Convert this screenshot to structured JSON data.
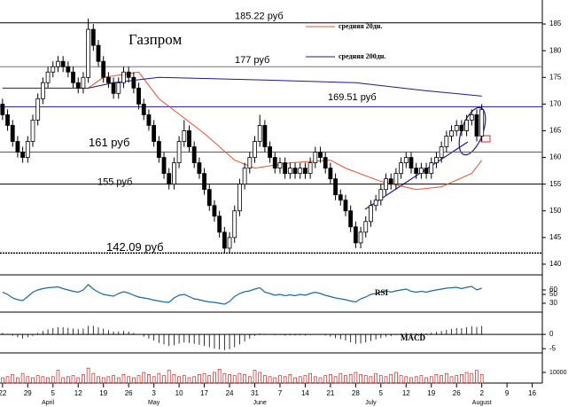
{
  "chart_data": {
    "type": "candlestick",
    "title": "Газпром",
    "xlim": [
      -0.5,
      107
    ],
    "ylim": [
      138,
      189.5
    ],
    "yticks": [
      185,
      180,
      175,
      170,
      165,
      160,
      155,
      150,
      145,
      140
    ],
    "xticks": [
      {
        "value": 0,
        "label": "22"
      },
      {
        "value": 5,
        "label": "29"
      },
      {
        "value": 10,
        "label": "5"
      },
      {
        "value": 15,
        "label": "12"
      },
      {
        "value": 20,
        "label": "19"
      },
      {
        "value": 25,
        "label": "26"
      },
      {
        "value": 30,
        "label": "3"
      },
      {
        "value": 35,
        "label": "10"
      },
      {
        "value": 40,
        "label": "17"
      },
      {
        "value": 45,
        "label": "24"
      },
      {
        "value": 50,
        "label": "31"
      },
      {
        "value": 55,
        "label": "7"
      },
      {
        "value": 60,
        "label": "14"
      },
      {
        "value": 65,
        "label": "21"
      },
      {
        "value": 70,
        "label": "28"
      },
      {
        "value": 75,
        "label": "5"
      },
      {
        "value": 80,
        "label": "12"
      },
      {
        "value": 85,
        "label": "19"
      },
      {
        "value": 90,
        "label": "26"
      },
      {
        "value": 95,
        "label": "2"
      },
      {
        "value": 100,
        "label": "9"
      },
      {
        "value": 105,
        "label": "16"
      }
    ],
    "month_ticks": [
      {
        "value": 9,
        "label": "April"
      },
      {
        "value": 30,
        "label": "May"
      },
      {
        "value": 51,
        "label": "June"
      },
      {
        "value": 73,
        "label": "July"
      },
      {
        "value": 95,
        "label": "August"
      }
    ],
    "candles": [
      [
        170,
        171,
        167,
        168
      ],
      [
        168,
        169,
        165,
        166
      ],
      [
        166,
        167,
        162,
        163
      ],
      [
        163,
        164,
        160,
        161
      ],
      [
        161,
        162,
        159,
        160
      ],
      [
        160,
        164,
        159,
        163
      ],
      [
        163,
        168,
        162,
        167
      ],
      [
        167,
        172,
        166,
        171
      ],
      [
        171,
        175,
        170,
        174
      ],
      [
        174,
        177,
        173,
        176
      ],
      [
        176,
        178,
        175,
        177
      ],
      [
        177,
        179,
        176,
        178
      ],
      [
        178,
        179,
        176,
        177
      ],
      [
        177,
        178,
        175,
        176
      ],
      [
        176,
        177,
        173,
        174
      ],
      [
        174,
        175,
        172,
        173
      ],
      [
        173,
        176,
        172,
        175
      ],
      [
        175,
        186,
        174,
        184
      ],
      [
        184,
        185,
        180,
        181
      ],
      [
        181,
        182,
        177,
        178
      ],
      [
        178,
        179,
        174,
        175
      ],
      [
        175,
        176,
        173,
        174
      ],
      [
        174,
        175,
        171,
        172
      ],
      [
        172,
        175,
        171,
        174
      ],
      [
        174,
        177,
        173,
        176
      ],
      [
        176,
        177,
        174,
        175
      ],
      [
        175,
        176,
        172,
        173
      ],
      [
        173,
        174,
        169,
        170
      ],
      [
        170,
        171,
        167,
        168
      ],
      [
        168,
        169,
        165,
        166
      ],
      [
        166,
        167,
        162,
        163
      ],
      [
        163,
        164,
        159,
        160
      ],
      [
        160,
        161,
        156,
        157
      ],
      [
        157,
        158,
        154,
        155
      ],
      [
        155,
        160,
        154,
        159
      ],
      [
        159,
        164,
        158,
        163
      ],
      [
        163,
        167,
        162,
        165
      ],
      [
        165,
        166,
        161,
        162
      ],
      [
        162,
        163,
        158,
        159
      ],
      [
        159,
        160,
        156,
        157
      ],
      [
        157,
        158,
        153,
        154
      ],
      [
        154,
        155,
        150,
        151
      ],
      [
        151,
        152,
        148,
        149
      ],
      [
        149,
        150,
        145,
        146
      ],
      [
        146,
        147,
        142,
        143
      ],
      [
        143,
        146,
        142,
        145
      ],
      [
        145,
        151,
        144,
        150
      ],
      [
        150,
        156,
        149,
        155
      ],
      [
        155,
        159,
        154,
        158
      ],
      [
        158,
        161,
        157,
        160
      ],
      [
        160,
        164,
        159,
        163
      ],
      [
        163,
        168,
        162,
        166
      ],
      [
        166,
        167,
        161,
        162
      ],
      [
        162,
        163,
        159,
        160
      ],
      [
        160,
        161,
        157,
        158
      ],
      [
        158,
        160,
        157,
        159
      ],
      [
        159,
        160,
        156,
        157
      ],
      [
        157,
        159,
        156,
        158
      ],
      [
        158,
        159,
        156,
        157
      ],
      [
        157,
        159,
        156,
        158
      ],
      [
        158,
        159,
        156,
        157
      ],
      [
        157,
        160,
        156,
        159
      ],
      [
        159,
        162,
        158,
        161
      ],
      [
        161,
        162,
        159,
        160
      ],
      [
        160,
        161,
        157,
        158
      ],
      [
        158,
        159,
        155,
        156
      ],
      [
        156,
        157,
        152,
        153
      ],
      [
        153,
        154,
        151,
        152
      ],
      [
        152,
        153,
        149,
        150
      ],
      [
        150,
        151,
        146,
        147
      ],
      [
        147,
        148,
        143,
        144
      ],
      [
        144,
        147,
        143,
        146
      ],
      [
        146,
        149,
        145,
        148
      ],
      [
        148,
        152,
        147,
        151
      ],
      [
        151,
        153,
        150,
        152
      ],
      [
        152,
        155,
        151,
        154
      ],
      [
        154,
        157,
        153,
        156
      ],
      [
        156,
        157,
        154,
        155
      ],
      [
        155,
        158,
        154,
        157
      ],
      [
        157,
        160,
        156,
        159
      ],
      [
        159,
        161,
        158,
        160
      ],
      [
        160,
        161,
        157,
        158
      ],
      [
        158,
        159,
        156,
        157
      ],
      [
        157,
        159,
        156,
        158
      ],
      [
        158,
        159,
        156,
        157
      ],
      [
        157,
        160,
        156,
        159
      ],
      [
        159,
        161,
        158,
        160
      ],
      [
        160,
        163,
        159,
        162
      ],
      [
        162,
        165,
        161,
        164
      ],
      [
        164,
        166,
        163,
        165
      ],
      [
        165,
        167,
        164,
        166
      ],
      [
        166,
        167,
        164,
        165
      ],
      [
        165,
        168,
        164,
        167
      ],
      [
        167,
        169,
        166,
        168
      ],
      [
        168,
        169,
        163,
        164
      ],
      [
        164,
        170,
        163,
        169
      ]
    ],
    "series": [
      {
        "name": "средняя 20дн.",
        "color": "#e8502a",
        "x": [
          17,
          20,
          27,
          31,
          40,
          46,
          50,
          57,
          65,
          68,
          75,
          82,
          87,
          93,
          95
        ],
        "values": [
          173,
          175,
          176,
          171,
          164.5,
          159.5,
          158,
          159,
          159.5,
          158,
          155.5,
          154,
          154.5,
          157,
          159.5
        ]
      },
      {
        "name": "средняя 200дн.",
        "color": "#1a1a8c",
        "x": [
          0,
          10,
          17,
          22,
          31,
          52,
          70,
          84,
          95
        ],
        "values": [
          173,
          173,
          173,
          174,
          175,
          174.5,
          174,
          172.5,
          171.5
        ]
      }
    ],
    "levels": [
      {
        "value": 185.22,
        "label": "185.22 руб",
        "color": "#000000"
      },
      {
        "value": 177,
        "label": "177 руб",
        "color": "#777777"
      },
      {
        "value": 169.51,
        "label": "169.51 руб",
        "color": "#1a1a8c"
      },
      {
        "value": 161,
        "label": "161 руб",
        "color": "#e000e0"
      },
      {
        "value": 155,
        "label": "155 руб",
        "color": "#000000"
      },
      {
        "value": 142.09,
        "label": "142.09 руб",
        "color": "#000000"
      }
    ],
    "rsi": {
      "label": "RSI",
      "color": "#1a6aa0",
      "ylim": [
        10,
        90
      ],
      "yticks": [
        60,
        50,
        30
      ],
      "values": [
        55,
        50,
        42,
        38,
        36,
        45,
        55,
        60,
        63,
        65,
        66,
        67,
        63,
        60,
        57,
        55,
        60,
        72,
        62,
        55,
        50,
        48,
        46,
        52,
        56,
        53,
        48,
        44,
        42,
        40,
        37,
        35,
        33,
        32,
        42,
        48,
        50,
        45,
        40,
        38,
        35,
        33,
        32,
        30,
        28,
        34,
        45,
        52,
        56,
        58,
        62,
        65,
        55,
        52,
        48,
        50,
        47,
        49,
        47,
        50,
        48,
        52,
        55,
        52,
        48,
        45,
        42,
        40,
        38,
        35,
        33,
        40,
        44,
        50,
        52,
        55,
        58,
        55,
        58,
        60,
        62,
        57,
        55,
        57,
        55,
        58,
        60,
        62,
        64,
        65,
        66,
        63,
        66,
        68,
        60,
        64
      ]
    },
    "macd": {
      "label": "MACD",
      "color": "#000000",
      "ylim": [
        -6.5,
        7.5
      ],
      "yticks": [
        0,
        -5
      ],
      "values": [
        0.5,
        0.2,
        -0.5,
        -1,
        -1.5,
        -1,
        -0.5,
        0.5,
        1.2,
        1.8,
        2.2,
        2.5,
        2.5,
        2.3,
        2,
        1.8,
        2,
        3,
        3,
        2.5,
        2,
        1.5,
        1,
        1,
        1.2,
        1,
        0.5,
        0,
        -0.8,
        -1.5,
        -2.2,
        -3,
        -3.5,
        -4,
        -3.8,
        -3.2,
        -2.8,
        -3,
        -3.3,
        -3.6,
        -4,
        -4.5,
        -5,
        -5.3,
        -5.5,
        -5.2,
        -4.5,
        -3.5,
        -2.5,
        -1.5,
        -0.5,
        0.3,
        0.2,
        0,
        -0.3,
        -0.2,
        -0.4,
        -0.3,
        -0.4,
        -0.3,
        -0.4,
        -0.2,
        0,
        -0.1,
        -0.4,
        -0.8,
        -1.3,
        -1.7,
        -2.2,
        -2.8,
        -3.3,
        -3.2,
        -2.8,
        -2.3,
        -1.8,
        -1.3,
        -0.8,
        -0.6,
        -0.2,
        0.3,
        0.6,
        0.5,
        0.4,
        0.5,
        0.4,
        0.6,
        0.9,
        1.2,
        1.6,
        1.9,
        2.2,
        2.2,
        2.5,
        2.9,
        2.6,
        3
      ]
    },
    "volume": {
      "color": "#d02020",
      "ylim": [
        0,
        25000
      ],
      "yticks": [
        10000
      ],
      "values": [
        5000,
        6000,
        8000,
        5000,
        9000,
        6000,
        5000,
        7000,
        6000,
        5000,
        6000,
        12000,
        5000,
        6000,
        7000,
        5000,
        8000,
        14000,
        9000,
        6000,
        5000,
        6000,
        7000,
        5000,
        8000,
        6000,
        5000,
        7000,
        10000,
        8000,
        6000,
        9000,
        7000,
        12000,
        8000,
        6000,
        7000,
        5000,
        6000,
        8000,
        9000,
        7000,
        10000,
        13000,
        9000,
        8000,
        7000,
        9000,
        8000,
        6000,
        12000,
        10000,
        7000,
        6000,
        5000,
        7000,
        6000,
        8000,
        5000,
        6000,
        7000,
        9000,
        6000,
        5000,
        7000,
        8000,
        6000,
        9000,
        7000,
        8000,
        10000,
        8000,
        7000,
        6000,
        9000,
        7000,
        6000,
        8000,
        10000,
        7000,
        6000,
        5000,
        6000,
        7000,
        5000,
        6000,
        8000,
        7000,
        9000,
        6000,
        7000,
        8000,
        10000,
        9000,
        12000,
        8000
      ]
    }
  }
}
